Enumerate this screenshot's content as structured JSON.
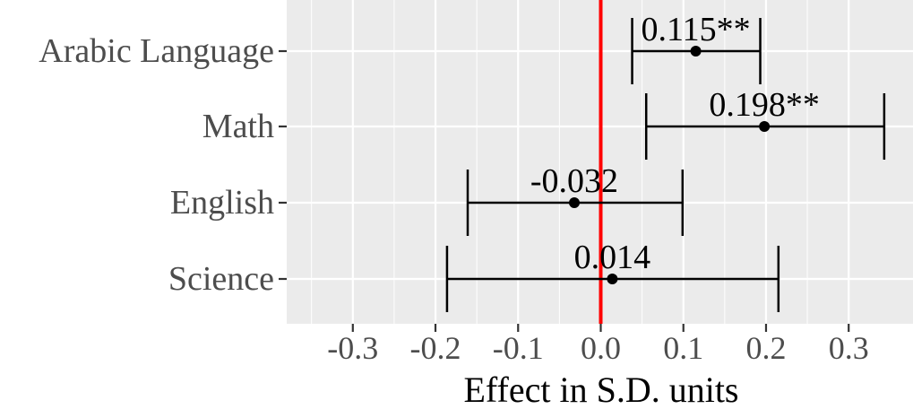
{
  "chart_data": {
    "type": "forest",
    "xlabel": "Effect in S.D. units",
    "xlim": [
      -0.38,
      0.38
    ],
    "xticks": [
      -0.3,
      -0.2,
      -0.1,
      0.0,
      0.1,
      0.2,
      0.3
    ],
    "xtick_labels": [
      "-0.3",
      "-0.2",
      "-0.1",
      "0.0",
      "0.1",
      "0.2",
      "0.3"
    ],
    "reference_line": {
      "x": 0.0,
      "color": "#ff0000"
    },
    "panel_background": "#ebebeb",
    "grid_color": "#ffffff",
    "point_color": "#000000",
    "rows": [
      {
        "category": "Arabic Language",
        "estimate": 0.115,
        "ci_low": 0.038,
        "ci_high": 0.193,
        "label": "0.115**"
      },
      {
        "category": "Math",
        "estimate": 0.198,
        "ci_low": 0.055,
        "ci_high": 0.343,
        "label": "0.198**"
      },
      {
        "category": "English",
        "estimate": -0.032,
        "ci_low": -0.161,
        "ci_high": 0.099,
        "label": "-0.032"
      },
      {
        "category": "Science",
        "estimate": 0.014,
        "ci_low": -0.186,
        "ci_high": 0.215,
        "label": "0.014"
      }
    ]
  }
}
